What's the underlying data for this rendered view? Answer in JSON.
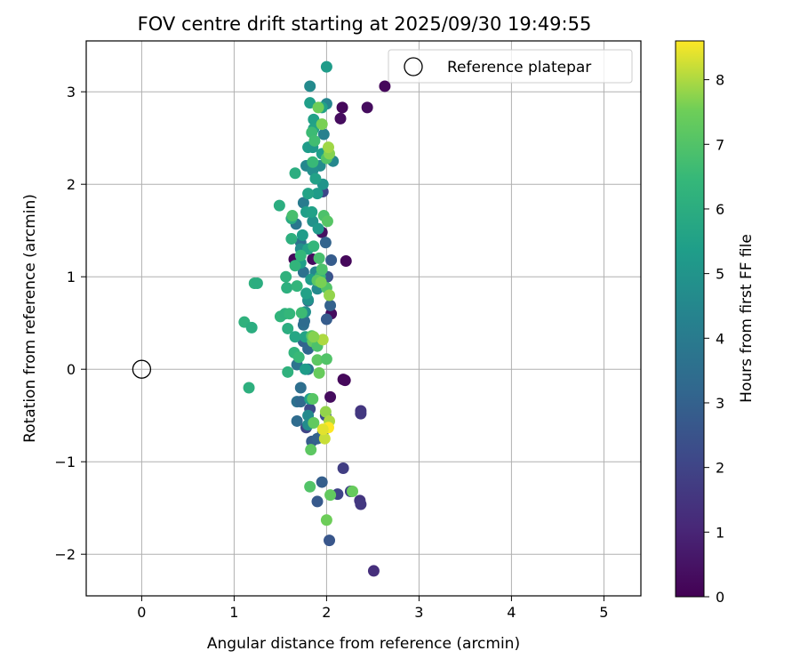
{
  "chart_data": {
    "type": "scatter",
    "title": "FOV centre drift starting at 2025/09/30 19:49:55",
    "xlabel": "Angular distance from reference (arcmin)",
    "ylabel": "Rotation from reference (arcmin)",
    "xlim": [
      -0.6,
      5.4
    ],
    "ylim": [
      -2.45,
      3.55
    ],
    "xticks": [
      0,
      1,
      2,
      3,
      4,
      5
    ],
    "yticks": [
      -2,
      -1,
      0,
      1,
      2,
      3
    ],
    "xtick_labels": [
      "0",
      "1",
      "2",
      "3",
      "4",
      "5"
    ],
    "ytick_labels": [
      "−2",
      "−1",
      "0",
      "1",
      "2",
      "3"
    ],
    "grid": true,
    "legend": {
      "location": "top-right",
      "entries": [
        "Reference platepar"
      ]
    },
    "reference_point": {
      "x": 0,
      "y": 0
    },
    "colorbar": {
      "label": "Hours from first FF file",
      "colormap": "viridis",
      "range": [
        0,
        8.6
      ],
      "ticks": [
        0,
        1,
        2,
        3,
        4,
        5,
        6,
        7,
        8
      ],
      "tick_labels": [
        "0",
        "1",
        "2",
        "3",
        "4",
        "5",
        "6",
        "7",
        "8"
      ]
    },
    "points": [
      [
        2.63,
        3.06,
        0.2
      ],
      [
        2.44,
        2.83,
        0.3
      ],
      [
        2.17,
        2.83,
        0.2
      ],
      [
        2.15,
        2.71,
        0.3
      ],
      [
        2.21,
        1.17,
        0.2
      ],
      [
        2.05,
        0.6,
        0.3
      ],
      [
        1.85,
        1.19,
        0.3
      ],
      [
        1.65,
        1.19,
        0.2
      ],
      [
        1.95,
        1.48,
        0.4
      ],
      [
        2.04,
        -0.3,
        0.3
      ],
      [
        2.18,
        -0.11,
        0.2
      ],
      [
        2.2,
        -0.12,
        0.2
      ],
      [
        2.51,
        -2.18,
        1.3
      ],
      [
        2.37,
        -0.45,
        1.5
      ],
      [
        2.37,
        -0.48,
        1.6
      ],
      [
        2.36,
        -1.42,
        1.5
      ],
      [
        2.37,
        -1.46,
        1.6
      ],
      [
        2.18,
        -1.07,
        1.8
      ],
      [
        2.26,
        -1.32,
        1.9
      ],
      [
        2.12,
        -1.35,
        2.0
      ],
      [
        1.78,
        -0.63,
        2.0
      ],
      [
        1.82,
        -0.43,
        2.2
      ],
      [
        1.99,
        -0.5,
        2.3
      ],
      [
        1.96,
        1.92,
        2.1
      ],
      [
        2.01,
        1.0,
        2.0
      ],
      [
        1.97,
        0.9,
        2.4
      ],
      [
        2.03,
        -1.85,
        2.6
      ],
      [
        1.9,
        -1.43,
        2.7
      ],
      [
        1.95,
        -1.22,
        2.9
      ],
      [
        1.84,
        -0.78,
        2.8
      ],
      [
        1.96,
        -0.68,
        2.8
      ],
      [
        1.9,
        -0.75,
        3.0
      ],
      [
        2.0,
        0.54,
        2.8
      ],
      [
        2.04,
        0.69,
        3.0
      ],
      [
        2.0,
        1.0,
        2.7
      ],
      [
        2.05,
        1.18,
        2.8
      ],
      [
        1.8,
        0.74,
        2.9
      ],
      [
        1.75,
        0.3,
        3.0
      ],
      [
        1.8,
        0.22,
        3.2
      ],
      [
        1.99,
        1.37,
        3.1
      ],
      [
        1.68,
        -0.56,
        3.4
      ],
      [
        1.68,
        -0.35,
        3.6
      ],
      [
        1.72,
        -0.35,
        3.3
      ],
      [
        1.72,
        -0.2,
        3.5
      ],
      [
        1.68,
        0.05,
        3.7
      ],
      [
        1.75,
        0.48,
        3.5
      ],
      [
        1.76,
        0.52,
        3.4
      ],
      [
        1.72,
        1.37,
        3.6
      ],
      [
        1.67,
        1.57,
        3.8
      ],
      [
        1.75,
        1.8,
        4.0
      ],
      [
        1.8,
        0.0,
        3.8
      ],
      [
        1.75,
        1.05,
        3.6
      ],
      [
        1.82,
        3.06,
        4.6
      ],
      [
        2.0,
        2.87,
        4.4
      ],
      [
        1.97,
        2.54,
        4.2
      ],
      [
        2.07,
        2.25,
        4.5
      ],
      [
        1.93,
        2.2,
        4.7
      ],
      [
        1.78,
        2.2,
        4.5
      ],
      [
        1.85,
        2.15,
        4.8
      ],
      [
        1.96,
        2.0,
        5.0
      ],
      [
        1.85,
        1.6,
        4.9
      ],
      [
        1.72,
        1.3,
        4.7
      ],
      [
        1.88,
        1.05,
        4.5
      ],
      [
        1.9,
        0.87,
        4.6
      ],
      [
        1.8,
        0.75,
        4.9
      ],
      [
        1.77,
        0.62,
        4.8
      ],
      [
        1.8,
        -0.5,
        4.6
      ],
      [
        1.8,
        -0.6,
        4.7
      ],
      [
        2.0,
        3.27,
        5.3
      ],
      [
        1.82,
        2.88,
        5.4
      ],
      [
        1.86,
        2.7,
        5.5
      ],
      [
        1.86,
        2.6,
        5.6
      ],
      [
        1.8,
        2.4,
        5.3
      ],
      [
        1.85,
        2.4,
        5.2
      ],
      [
        1.95,
        2.33,
        5.4
      ],
      [
        1.88,
        2.06,
        5.5
      ],
      [
        1.9,
        1.9,
        5.3
      ],
      [
        1.8,
        1.9,
        5.6
      ],
      [
        1.78,
        1.7,
        5.4
      ],
      [
        1.84,
        1.7,
        5.5
      ],
      [
        1.74,
        1.45,
        5.3
      ],
      [
        1.8,
        1.3,
        5.6
      ],
      [
        1.72,
        1.15,
        5.4
      ],
      [
        1.83,
        0.97,
        5.3
      ],
      [
        1.78,
        0.82,
        5.5
      ],
      [
        1.77,
        0.35,
        5.6
      ],
      [
        1.82,
        -0.32,
        5.4
      ],
      [
        1.77,
        0.0,
        5.3
      ],
      [
        1.95,
        2.83,
        5.5
      ],
      [
        1.91,
        1.52,
        5.2
      ],
      [
        1.66,
        0.35,
        5.7
      ],
      [
        1.49,
        1.77,
        6.0
      ],
      [
        1.62,
        1.63,
        5.9
      ],
      [
        1.62,
        1.41,
        6.1
      ],
      [
        1.66,
        2.12,
        6.0
      ],
      [
        1.56,
        1.0,
        6.2
      ],
      [
        1.57,
        0.88,
        6.1
      ],
      [
        1.68,
        0.9,
        6.3
      ],
      [
        1.22,
        0.93,
        6.1
      ],
      [
        1.25,
        0.93,
        6.0
      ],
      [
        1.11,
        0.51,
        6.2
      ],
      [
        1.19,
        0.45,
        6.0
      ],
      [
        1.16,
        -0.2,
        6.1
      ],
      [
        1.5,
        0.57,
        6.3
      ],
      [
        1.55,
        0.6,
        6.2
      ],
      [
        1.6,
        0.6,
        6.4
      ],
      [
        1.58,
        0.44,
        6.0
      ],
      [
        1.58,
        -0.03,
        6.2
      ],
      [
        1.65,
        0.18,
        6.3
      ],
      [
        1.7,
        0.13,
        6.5
      ],
      [
        1.72,
        1.23,
        6.4
      ],
      [
        1.66,
        1.12,
        6.3
      ],
      [
        1.84,
        2.56,
        6.6
      ],
      [
        1.87,
        2.47,
        6.7
      ],
      [
        1.85,
        2.24,
        6.5
      ],
      [
        1.86,
        1.33,
        6.4
      ],
      [
        1.93,
        1.0,
        6.5
      ],
      [
        1.73,
        0.61,
        6.6
      ],
      [
        1.63,
        1.66,
        6.8
      ],
      [
        2.0,
        2.28,
        7.0
      ],
      [
        1.97,
        1.66,
        6.9
      ],
      [
        2.01,
        1.6,
        7.1
      ],
      [
        1.92,
        1.2,
        6.8
      ],
      [
        1.95,
        1.08,
        6.9
      ],
      [
        1.9,
        0.96,
        7.2
      ],
      [
        2.0,
        0.88,
        7.0
      ],
      [
        1.85,
        0.3,
        7.3
      ],
      [
        1.84,
        0.36,
        7.1
      ],
      [
        1.9,
        0.25,
        6.9
      ],
      [
        1.9,
        0.1,
        7.2
      ],
      [
        2.0,
        0.11,
        7.0
      ],
      [
        1.92,
        -0.04,
        7.4
      ],
      [
        1.85,
        -0.32,
        7.1
      ],
      [
        1.86,
        -0.58,
        7.3
      ],
      [
        1.83,
        -0.87,
        7.2
      ],
      [
        1.82,
        -1.27,
        7.0
      ],
      [
        2.04,
        -1.36,
        7.3
      ],
      [
        2.28,
        -1.32,
        7.4
      ],
      [
        2.0,
        -1.63,
        7.5
      ],
      [
        1.95,
        2.65,
        7.6
      ],
      [
        2.03,
        2.33,
        7.7
      ],
      [
        2.02,
        2.4,
        7.9
      ],
      [
        1.91,
        2.83,
        7.5
      ],
      [
        1.96,
        0.32,
        8.0
      ],
      [
        1.99,
        -0.46,
        7.8
      ],
      [
        2.03,
        -0.56,
        8.0
      ],
      [
        2.02,
        -0.63,
        8.6
      ],
      [
        1.98,
        -0.75,
        8.2
      ],
      [
        1.96,
        -0.65,
        8.4
      ],
      [
        2.03,
        0.8,
        7.8
      ],
      [
        1.94,
        0.94,
        7.6
      ],
      [
        1.86,
        0.35,
        7.7
      ]
    ]
  }
}
